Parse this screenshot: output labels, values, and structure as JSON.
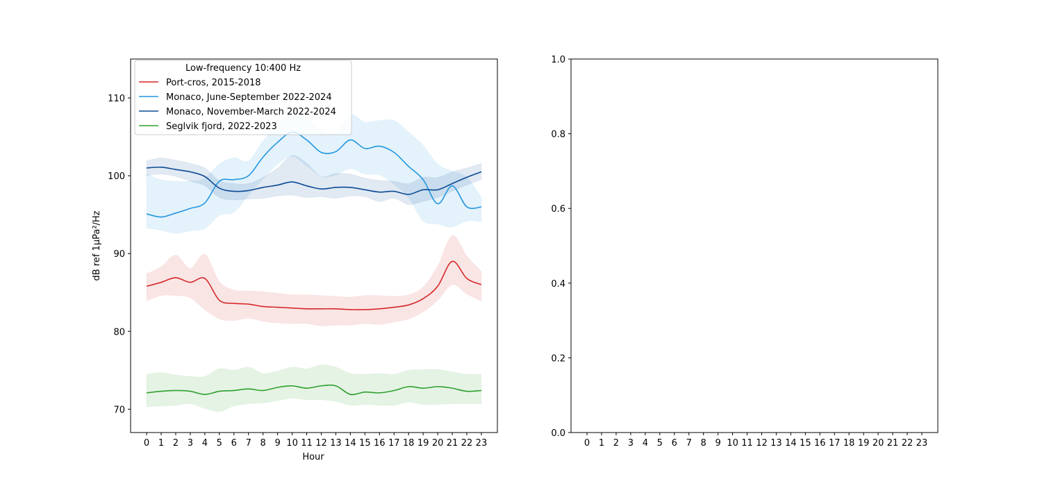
{
  "chart_data": [
    {
      "type": "line",
      "title": "",
      "xlabel": "Hour",
      "ylabel": "dB ref 1µPa²/Hz",
      "xlim": [
        -1.1,
        24.1
      ],
      "ylim": [
        67,
        115
      ],
      "x": [
        0,
        1,
        2,
        3,
        4,
        5,
        6,
        7,
        8,
        9,
        10,
        11,
        12,
        13,
        14,
        15,
        16,
        17,
        18,
        19,
        20,
        21,
        22,
        23
      ],
      "xticks": [
        "0",
        "1",
        "2",
        "3",
        "4",
        "5",
        "6",
        "7",
        "8",
        "9",
        "10",
        "11",
        "12",
        "13",
        "14",
        "15",
        "16",
        "17",
        "18",
        "19",
        "20",
        "21",
        "22",
        "23"
      ],
      "yticks": [
        70,
        80,
        90,
        100,
        110
      ],
      "legend": {
        "title": "Low-frequency 10:400 Hz",
        "position": "upper-left"
      },
      "series": [
        {
          "name": "Port-cros, 2015-2018",
          "color": "#d62728",
          "values": [
            85.8,
            86.3,
            86.9,
            86.3,
            86.8,
            84.0,
            83.6,
            83.5,
            83.2,
            83.1,
            83.0,
            82.9,
            82.9,
            82.9,
            82.8,
            82.8,
            82.9,
            83.1,
            83.4,
            84.2,
            85.8,
            89.0,
            86.8,
            86.0
          ],
          "lower": [
            83.9,
            84.6,
            84.6,
            84.3,
            82.8,
            81.6,
            81.4,
            81.7,
            81.3,
            81.1,
            81.0,
            81.0,
            80.7,
            80.8,
            80.8,
            81.0,
            80.9,
            81.2,
            81.6,
            82.5,
            84.0,
            86.0,
            84.8,
            83.9
          ],
          "upper": [
            87.4,
            88.3,
            89.8,
            88.1,
            89.9,
            86.4,
            85.3,
            85.2,
            85.1,
            84.9,
            84.7,
            84.7,
            84.6,
            84.5,
            84.4,
            84.6,
            84.6,
            84.5,
            84.7,
            85.7,
            88.4,
            92.3,
            89.7,
            87.7
          ]
        },
        {
          "name": "Monaco, June-September 2022-2024",
          "color": "#2196e0",
          "values": [
            95.1,
            94.7,
            95.2,
            95.8,
            96.5,
            99.3,
            99.5,
            100.0,
            102.4,
            104.3,
            105.6,
            104.6,
            103.0,
            103.1,
            104.6,
            103.5,
            103.8,
            103.0,
            101.2,
            99.5,
            96.4,
            98.7,
            96.0,
            96.0
          ],
          "lower": [
            93.3,
            93.0,
            92.6,
            92.9,
            93.2,
            94.9,
            95.3,
            97.5,
            99.6,
            101.5,
            102.5,
            101.3,
            99.9,
            100.1,
            100.9,
            100.2,
            100.1,
            98.9,
            97.2,
            94.2,
            93.8,
            93.4,
            94.2,
            94.1
          ],
          "upper": [
            100.2,
            99.5,
            99.3,
            99.3,
            99.7,
            101.5,
            102.3,
            101.9,
            104.5,
            106.5,
            108.2,
            107.4,
            105.9,
            105.5,
            107.8,
            106.9,
            107.1,
            107.1,
            105.6,
            103.9,
            101.5,
            100.6,
            99.8,
            97.2
          ]
        },
        {
          "name": "Monaco, November-March 2022-2024",
          "color": "#0b4a94",
          "values": [
            101.0,
            101.1,
            100.8,
            100.5,
            99.9,
            98.4,
            98.0,
            98.1,
            98.5,
            98.8,
            99.2,
            98.7,
            98.3,
            98.5,
            98.5,
            98.2,
            97.9,
            98.0,
            97.6,
            98.2,
            98.2,
            99.0,
            99.8,
            100.5
          ],
          "lower": [
            100.0,
            100.2,
            99.9,
            99.3,
            98.7,
            97.2,
            96.9,
            97.0,
            97.1,
            97.4,
            97.5,
            97.2,
            97.3,
            97.1,
            97.4,
            97.3,
            96.7,
            97.1,
            96.3,
            96.7,
            97.2,
            98.0,
            98.8,
            99.5
          ],
          "upper": [
            101.9,
            102.3,
            102.0,
            101.6,
            101.0,
            99.4,
            99.0,
            99.0,
            99.8,
            101.0,
            102.6,
            101.6,
            99.9,
            100.3,
            100.2,
            99.7,
            99.4,
            99.3,
            99.0,
            99.8,
            99.8,
            100.5,
            101.0,
            101.6
          ]
        },
        {
          "name": "Seglvik fjord, 2022-2023",
          "color": "#2ca02c",
          "values": [
            72.1,
            72.3,
            72.4,
            72.3,
            71.9,
            72.3,
            72.4,
            72.6,
            72.4,
            72.8,
            73.0,
            72.7,
            73.0,
            73.0,
            71.9,
            72.2,
            72.1,
            72.4,
            72.9,
            72.7,
            72.9,
            72.7,
            72.3,
            72.4
          ],
          "lower": [
            70.3,
            70.4,
            70.5,
            70.7,
            70.1,
            69.7,
            70.4,
            70.7,
            70.8,
            71.1,
            71.4,
            71.2,
            71.2,
            71.0,
            70.5,
            70.6,
            70.5,
            70.5,
            70.9,
            70.6,
            70.6,
            70.7,
            70.7,
            70.7
          ],
          "upper": [
            74.5,
            74.7,
            74.4,
            74.2,
            74.2,
            75.2,
            75.0,
            75.4,
            74.6,
            74.9,
            75.4,
            75.2,
            75.7,
            75.4,
            74.6,
            74.5,
            74.6,
            74.5,
            75.0,
            75.1,
            75.1,
            74.8,
            74.5,
            74.5
          ]
        }
      ]
    },
    {
      "type": "line",
      "title": "",
      "xlabel": "",
      "ylabel": "",
      "xlim": [
        -1.1,
        24.1
      ],
      "ylim": [
        0,
        1
      ],
      "xticks": [
        "0",
        "1",
        "2",
        "3",
        "4",
        "5",
        "6",
        "7",
        "8",
        "9",
        "10",
        "11",
        "12",
        "13",
        "14",
        "15",
        "16",
        "17",
        "18",
        "19",
        "20",
        "21",
        "22",
        "23"
      ],
      "yticks": [
        "0.0",
        "0.2",
        "0.4",
        "0.6",
        "0.8",
        "1.0"
      ],
      "series": []
    }
  ]
}
